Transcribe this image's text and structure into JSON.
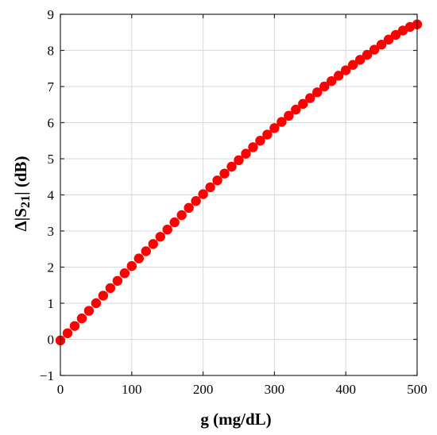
{
  "chart_data": {
    "type": "scatter",
    "title": "",
    "xlabel": "g (mg/dL)",
    "ylabel_parts": {
      "prefix": "Δ|S",
      "subscript": "21",
      "suffix": "| (dB)"
    },
    "xlim": [
      0,
      500
    ],
    "ylim": [
      -1,
      9
    ],
    "xticks": [
      0,
      100,
      200,
      300,
      400,
      500
    ],
    "yticks": [
      -1,
      0,
      1,
      2,
      3,
      4,
      5,
      6,
      7,
      8,
      9
    ],
    "grid": true,
    "marker_color": "#ff0000",
    "series": [
      {
        "x": [
          0,
          10,
          20,
          30,
          40,
          50,
          60,
          70,
          80,
          90,
          100,
          110,
          120,
          130,
          140,
          150,
          160,
          170,
          180,
          190,
          200,
          210,
          220,
          230,
          240,
          250,
          260,
          270,
          280,
          290,
          300,
          310,
          320,
          330,
          340,
          350,
          360,
          370,
          380,
          390,
          400,
          410,
          420,
          430,
          440,
          450,
          460,
          470,
          480,
          490,
          500
        ],
        "y": [
          -0.03,
          0.17,
          0.37,
          0.58,
          0.79,
          1.0,
          1.21,
          1.42,
          1.62,
          1.83,
          2.03,
          2.24,
          2.44,
          2.64,
          2.84,
          3.04,
          3.24,
          3.44,
          3.64,
          3.83,
          4.02,
          4.21,
          4.4,
          4.59,
          4.78,
          4.96,
          5.14,
          5.32,
          5.5,
          5.67,
          5.85,
          6.02,
          6.19,
          6.36,
          6.52,
          6.68,
          6.84,
          7.0,
          7.15,
          7.3,
          7.45,
          7.6,
          7.74,
          7.88,
          8.02,
          8.16,
          8.3,
          8.43,
          8.55,
          8.65,
          8.72
        ]
      }
    ]
  }
}
